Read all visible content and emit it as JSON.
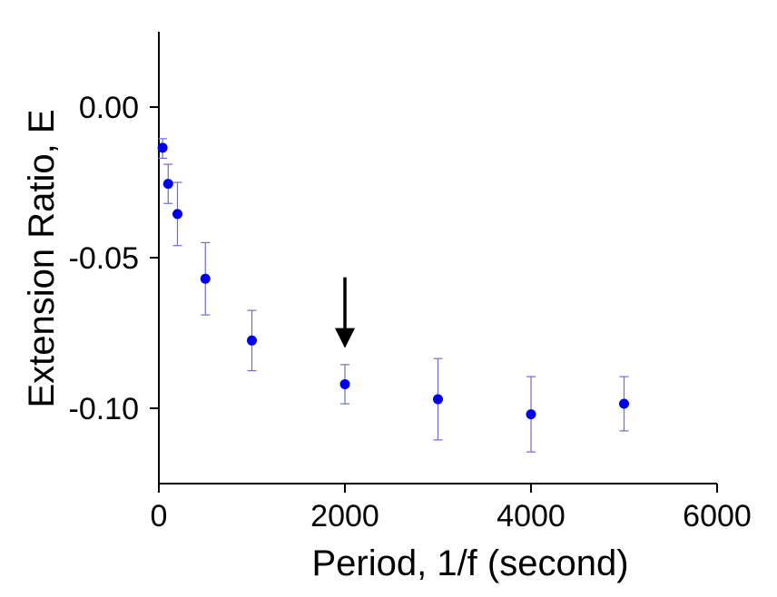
{
  "chart_data": {
    "type": "scatter",
    "xlabel": "Period, 1/f (second)",
    "ylabel": "Extension Ratio, E",
    "xlim": [
      0,
      6000
    ],
    "ylim": [
      -0.125,
      0.025
    ],
    "x_ticks": [
      0,
      2000,
      4000,
      6000
    ],
    "x_tick_labels": [
      "0",
      "2000",
      "4000",
      "6000"
    ],
    "y_ticks": [
      0.0,
      -0.05,
      -0.1
    ],
    "y_tick_labels": [
      "0.00",
      "-0.05",
      "-0.10"
    ],
    "grid": false,
    "legend": "none",
    "series": [
      {
        "marker_color": "#0000ee",
        "errorbar_color": "#6b6bdf",
        "points": [
          {
            "x": 40,
            "y": -0.0135,
            "err_low": 0.0035,
            "err_high": 0.003
          },
          {
            "x": 100,
            "y": -0.0255,
            "err_low": 0.0065,
            "err_high": 0.0065
          },
          {
            "x": 200,
            "y": -0.0355,
            "err_low": 0.0105,
            "err_high": 0.0105
          },
          {
            "x": 500,
            "y": -0.057,
            "err_low": 0.012,
            "err_high": 0.012
          },
          {
            "x": 1000,
            "y": -0.0775,
            "err_low": 0.01,
            "err_high": 0.01
          },
          {
            "x": 2000,
            "y": -0.092,
            "err_low": 0.0065,
            "err_high": 0.0065
          },
          {
            "x": 3000,
            "y": -0.097,
            "err_low": 0.0135,
            "err_high": 0.0135
          },
          {
            "x": 4000,
            "y": -0.102,
            "err_low": 0.0125,
            "err_high": 0.0125
          },
          {
            "x": 5000,
            "y": -0.0985,
            "err_low": 0.009,
            "err_high": 0.009
          }
        ]
      }
    ],
    "annotations": [
      {
        "type": "arrow",
        "direction": "down",
        "x": 2000,
        "y_from": -0.0565,
        "y_to": -0.08,
        "color": "#000000"
      }
    ]
  }
}
